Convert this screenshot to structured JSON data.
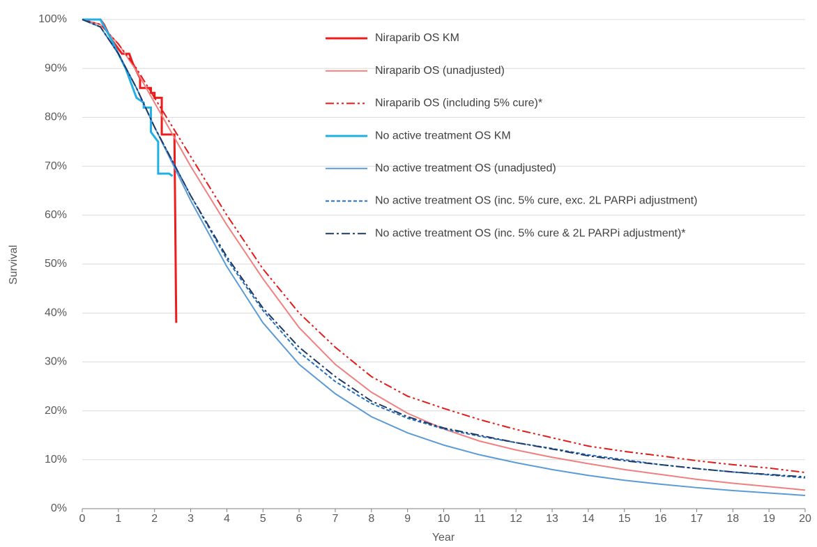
{
  "chart_data": {
    "type": "line",
    "x_label": "Year",
    "y_label": "Survival",
    "xlim": [
      0,
      20
    ],
    "xticks": [
      0,
      1,
      2,
      3,
      4,
      5,
      6,
      7,
      8,
      9,
      10,
      11,
      12,
      13,
      14,
      15,
      16,
      17,
      18,
      19,
      20
    ],
    "ylim": [
      0,
      100
    ],
    "yticks": [
      {
        "value": 0,
        "label": "0%"
      },
      {
        "value": 10,
        "label": "10%"
      },
      {
        "value": 20,
        "label": "20%"
      },
      {
        "value": 30,
        "label": "30%"
      },
      {
        "value": 40,
        "label": "40%"
      },
      {
        "value": 50,
        "label": "50%"
      },
      {
        "value": 60,
        "label": "60%"
      },
      {
        "value": 70,
        "label": "70%"
      },
      {
        "value": 80,
        "label": "80%"
      },
      {
        "value": 90,
        "label": "90%"
      },
      {
        "value": 100,
        "label": "100%"
      }
    ],
    "grid": true,
    "legend": "top-center",
    "series": [
      {
        "name": "Niraparib OS KM",
        "color": "#ee1c1c",
        "width": 3,
        "dash": "solid",
        "x": [
          0,
          0.5,
          0.6,
          0.8,
          1,
          1.1,
          1.3,
          1.4,
          1.6,
          1.6,
          1.9,
          1.9,
          2,
          2,
          2.2,
          2.2,
          2.55,
          2.6
        ],
        "values": [
          100,
          100,
          99,
          96,
          94,
          93,
          93,
          91,
          88,
          86,
          86,
          85,
          85,
          84,
          84,
          76.5,
          76.5,
          38
        ]
      },
      {
        "name": "Niraparib OS (unadjusted)",
        "color": "#f08080",
        "width": 2,
        "dash": "solid",
        "x": [
          0,
          0.5,
          1,
          1.5,
          2,
          2.5,
          3,
          4,
          5,
          6,
          7,
          8,
          9,
          10,
          11,
          12,
          13,
          14,
          15,
          16,
          17,
          18,
          19,
          20
        ],
        "values": [
          100,
          99,
          95,
          89.5,
          83,
          76.5,
          70,
          58,
          47,
          37,
          29.5,
          23.8,
          19.5,
          16.3,
          13.8,
          12,
          10.5,
          9.2,
          8,
          7,
          6,
          5.2,
          4.5,
          3.8
        ]
      },
      {
        "name": "Niraparib OS (including 5% cure)*",
        "color": "#e21a1a",
        "width": 2,
        "dash": "dash-dot-dot",
        "x": [
          0,
          0.5,
          1,
          1.5,
          2,
          2.5,
          3,
          4,
          5,
          6,
          7,
          8,
          9,
          10,
          11,
          12,
          13,
          14,
          15,
          16,
          17,
          18,
          19,
          20
        ],
        "values": [
          100,
          99,
          95,
          90,
          84,
          78,
          72,
          60,
          49,
          40,
          33,
          27,
          23,
          20.5,
          18.2,
          16.2,
          14.5,
          12.8,
          11.7,
          10.8,
          9.8,
          9,
          8.3,
          7.4
        ]
      },
      {
        "name": "No active treatment OS KM",
        "color": "#1fb0e6",
        "width": 3,
        "dash": "solid",
        "x": [
          0,
          0.5,
          0.8,
          1,
          1.2,
          1.4,
          1.5,
          1.7,
          1.7,
          1.9,
          1.9,
          2.1,
          2.1,
          2.4,
          2.5
        ],
        "values": [
          100,
          100,
          96,
          93,
          90,
          86,
          84,
          83,
          82,
          82,
          77,
          75,
          68.5,
          68.5,
          68
        ]
      },
      {
        "name": "No active treatment OS (unadjusted)",
        "color": "#5b9bd5",
        "width": 2,
        "dash": "solid",
        "x": [
          0,
          0.5,
          1,
          1.5,
          2,
          2.5,
          3,
          4,
          5,
          6,
          7,
          8,
          9,
          10,
          11,
          12,
          13,
          14,
          15,
          16,
          17,
          18,
          19,
          20
        ],
        "values": [
          100,
          98.5,
          93,
          86,
          78,
          70.5,
          63,
          49.5,
          38,
          29.5,
          23.5,
          18.8,
          15.5,
          13,
          11,
          9.4,
          8,
          6.8,
          5.8,
          5,
          4.3,
          3.7,
          3.2,
          2.7
        ]
      },
      {
        "name": "No active treatment OS (inc. 5% cure, exc. 2L PARPi adjustment)",
        "color": "#1f6fbf",
        "width": 2,
        "dash": "dash",
        "x": [
          0,
          0.5,
          1,
          1.5,
          2,
          2.5,
          3,
          4,
          5,
          6,
          7,
          8,
          9,
          10,
          11,
          12,
          13,
          14,
          15,
          16,
          17,
          18,
          19,
          20
        ],
        "values": [
          100,
          98.5,
          93,
          86,
          78,
          71,
          64,
          51,
          40.5,
          32,
          26,
          21.5,
          18.5,
          16.3,
          14.8,
          13.5,
          12.3,
          11,
          10,
          9,
          8.2,
          7.5,
          6.9,
          6.3
        ]
      },
      {
        "name": "No active treatment OS (inc. 5% cure & 2L PARPi adjustment)*",
        "color": "#1f3864",
        "width": 2,
        "dash": "dash-dot",
        "x": [
          0,
          0.5,
          1,
          1.5,
          2,
          2.5,
          3,
          4,
          5,
          6,
          7,
          8,
          9,
          10,
          11,
          12,
          13,
          14,
          15,
          16,
          17,
          18,
          19,
          20
        ],
        "values": [
          100,
          98.5,
          93,
          86,
          78,
          71,
          64,
          51.5,
          41,
          33,
          27,
          22,
          18.8,
          16.5,
          15,
          13.5,
          12.2,
          10.8,
          9.8,
          9,
          8.2,
          7.5,
          7,
          6.5
        ]
      }
    ]
  }
}
